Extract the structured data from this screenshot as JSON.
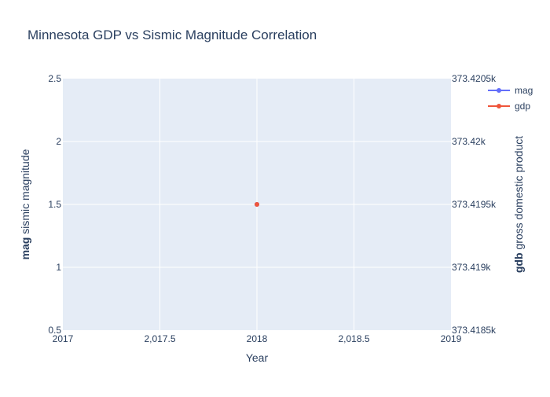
{
  "chart_data": {
    "type": "line",
    "title": "Minnesota GDP vs Sismic Magnitude Correlation",
    "xlabel": "Year",
    "ylabel": {
      "bold": "mag",
      "rest": " sismic magnitude"
    },
    "y2label": {
      "bold": "gdb",
      "rest": " gross domestic product"
    },
    "xlim": [
      2017,
      2019
    ],
    "ylim": [
      0.5,
      2.5
    ],
    "y2lim": [
      373418.5,
      373420.5
    ],
    "x_ticks": [
      {
        "value": 2017,
        "label": "2017"
      },
      {
        "value": 2017.5,
        "label": "2,017.5"
      },
      {
        "value": 2018,
        "label": "2018"
      },
      {
        "value": 2018.5,
        "label": "2,018.5"
      },
      {
        "value": 2019,
        "label": "2019"
      }
    ],
    "y_ticks": [
      {
        "value": 0.5,
        "label": "0.5"
      },
      {
        "value": 1,
        "label": "1"
      },
      {
        "value": 1.5,
        "label": "1.5"
      },
      {
        "value": 2,
        "label": "2"
      },
      {
        "value": 2.5,
        "label": "2.5"
      }
    ],
    "y2_ticks": [
      {
        "value": 373418.5,
        "label": "373.4185k"
      },
      {
        "value": 373419,
        "label": "373.419k"
      },
      {
        "value": 373419.5,
        "label": "373.4195k"
      },
      {
        "value": 373420,
        "label": "373.42k"
      },
      {
        "value": 373420.5,
        "label": "373.4205k"
      }
    ],
    "series": [
      {
        "name": "mag",
        "axis": "y",
        "color": "#636efa",
        "x": [
          2018
        ],
        "y": [
          1.5
        ]
      },
      {
        "name": "gdp",
        "axis": "y2",
        "color": "#ef553b",
        "x": [
          2018
        ],
        "y": [
          373419.5
        ]
      }
    ],
    "legend_position": "top-right",
    "grid": true,
    "plot_bg": "#e5ecf6"
  }
}
